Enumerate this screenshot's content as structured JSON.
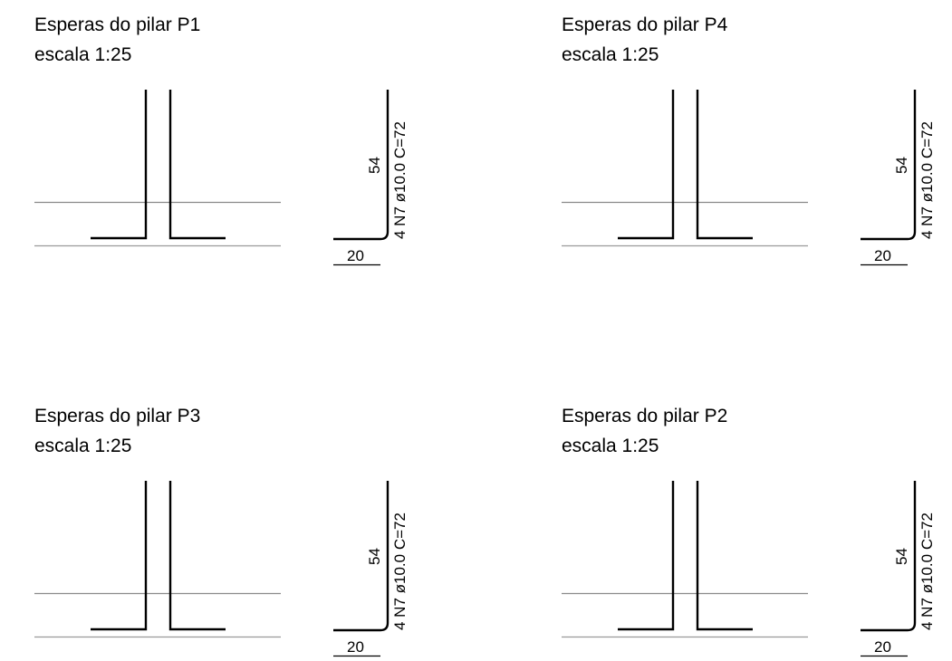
{
  "panels": [
    {
      "title": "Esperas do pilar P1",
      "scale": "escala 1:25",
      "bar_label": "4 N7 ø10.0 C=72",
      "vertical_length": "54",
      "hook_length": "20"
    },
    {
      "title": "Esperas do pilar P4",
      "scale": "escala 1:25",
      "bar_label": "4 N7 ø10.0 C=72",
      "vertical_length": "54",
      "hook_length": "20"
    },
    {
      "title": "Esperas do pilar P3",
      "scale": "escala 1:25",
      "bar_label": "4 N7 ø10.0 C=72",
      "vertical_length": "54",
      "hook_length": "20"
    },
    {
      "title": "Esperas do pilar P2",
      "scale": "escala 1:25",
      "bar_label": "4 N7 ø10.0 C=72",
      "vertical_length": "54",
      "hook_length": "20"
    }
  ]
}
